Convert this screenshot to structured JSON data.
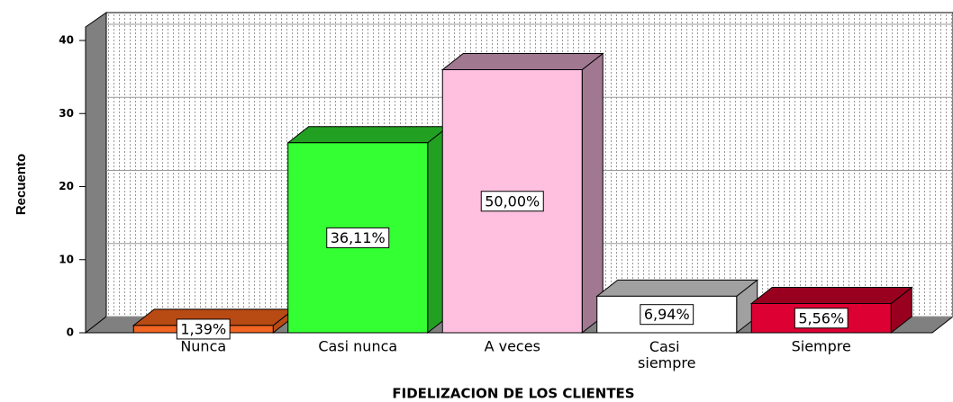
{
  "chart_data": {
    "type": "bar3d",
    "x_label": "FIDELIZACION DE LOS CLIENTES",
    "y_label": "Recuento",
    "categories": [
      "Nunca",
      "Casi nunca",
      "A veces",
      "Casi siempre",
      "Siempre"
    ],
    "values": [
      1,
      26,
      36,
      5,
      4
    ],
    "value_labels": [
      "1,39%",
      "36,11%",
      "50,00%",
      "6,94%",
      "5,56%"
    ],
    "colors": [
      "#f26522",
      "#33ff33",
      "#ffc0e0",
      "#ffffff",
      "#dd0033"
    ],
    "side_colors": [
      "#b84a14",
      "#22a022",
      "#a07890",
      "#a0a0a0",
      "#99001f"
    ],
    "ylim": [
      0,
      40
    ],
    "yticks": [
      0,
      10,
      20,
      30,
      40
    ],
    "grid": true
  }
}
